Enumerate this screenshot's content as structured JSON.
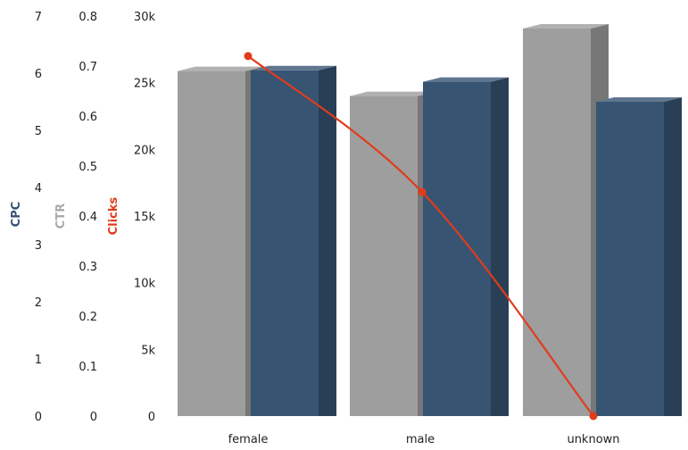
{
  "chart_data": {
    "type": "bar",
    "categories": [
      "female",
      "male",
      "unknown"
    ],
    "series": [
      {
        "name": "CTR",
        "axis": "CTR",
        "type": "bar",
        "color": "#9e9e9e",
        "values": [
          0.69,
          0.64,
          0.775
        ]
      },
      {
        "name": "CPC",
        "axis": "CPC",
        "type": "bar",
        "color": "#375473",
        "values": [
          6.05,
          5.85,
          5.5
        ]
      },
      {
        "name": "Clicks",
        "axis": "Clicks",
        "type": "line",
        "color": "#e03c1c",
        "values": [
          27000,
          16800,
          0
        ]
      }
    ],
    "axes": {
      "CPC": {
        "label": "CPC",
        "color": "#375473",
        "ticks": [
          "0",
          "1",
          "2",
          "3",
          "4",
          "5",
          "6",
          "7"
        ],
        "min": 0,
        "max": 7
      },
      "CTR": {
        "label": "CTR",
        "color": "#aaaaaa",
        "ticks": [
          "0",
          "0.1",
          "0.2",
          "0.3",
          "0.4",
          "0.5",
          "0.6",
          "0.7",
          "0.8"
        ],
        "min": 0,
        "max": 0.8
      },
      "Clicks": {
        "label": "Clicks",
        "color": "#e03c1c",
        "ticks": [
          "0",
          "5k",
          "10k",
          "15k",
          "20k",
          "25k",
          "30k"
        ],
        "min": 0,
        "max": 30000
      }
    },
    "grid": false,
    "legend": "none"
  }
}
